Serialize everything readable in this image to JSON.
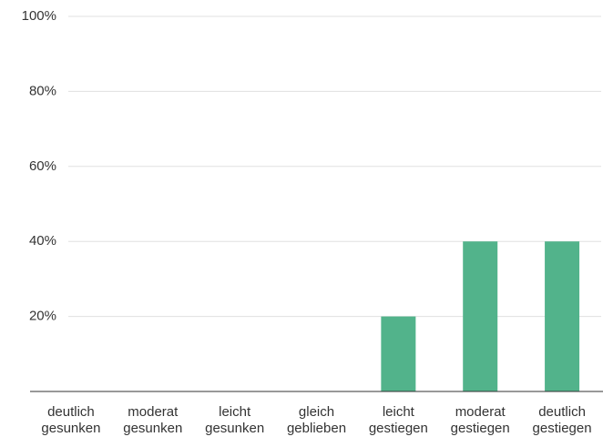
{
  "chart_data": {
    "type": "bar",
    "categories": [
      [
        "deutlich",
        "gesunken"
      ],
      [
        "moderat",
        "gesunken"
      ],
      [
        "leicht",
        "gesunken"
      ],
      [
        "gleich",
        "geblieben"
      ],
      [
        "leicht",
        "gestiegen"
      ],
      [
        "moderat",
        "gestiegen"
      ],
      [
        "deutlich",
        "gestiegen"
      ]
    ],
    "values": [
      0,
      0,
      0,
      0,
      20,
      40,
      40
    ],
    "color": "#52b38b",
    "ylim": [
      0,
      100
    ],
    "yticks": [
      {
        "value": 20,
        "label": "20%"
      },
      {
        "value": 40,
        "label": "40%"
      },
      {
        "value": 60,
        "label": "60%"
      },
      {
        "value": 80,
        "label": "80%"
      },
      {
        "value": 100,
        "label": "100%"
      }
    ],
    "grid": true
  }
}
